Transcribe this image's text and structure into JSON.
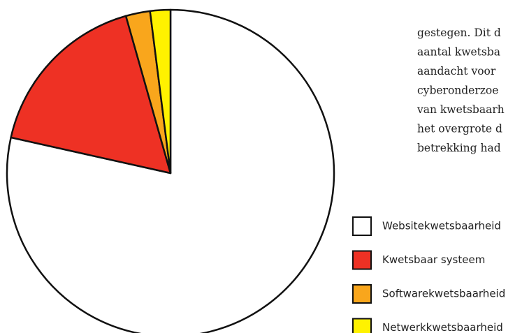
{
  "chart_data": {
    "type": "pie",
    "categories": [
      "Websitekwetsbaarheid",
      "Kwetsbaar systeem",
      "Softwarekwetsbaarheid",
      "Netwerkkwetsbaarheid"
    ],
    "values": [
      78.5,
      17.1,
      2.4,
      2.0
    ],
    "colors": [
      "#ffffff",
      "#ee3124",
      "#f9a61c",
      "#fff200"
    ]
  },
  "text": {
    "lines": [
      "gestegen. Dit d",
      "aantal kwetsba",
      "aandacht voor",
      "cyberonderzoe",
      "van kwetsbaarh",
      "het overgrote d",
      "betrekking had"
    ]
  }
}
